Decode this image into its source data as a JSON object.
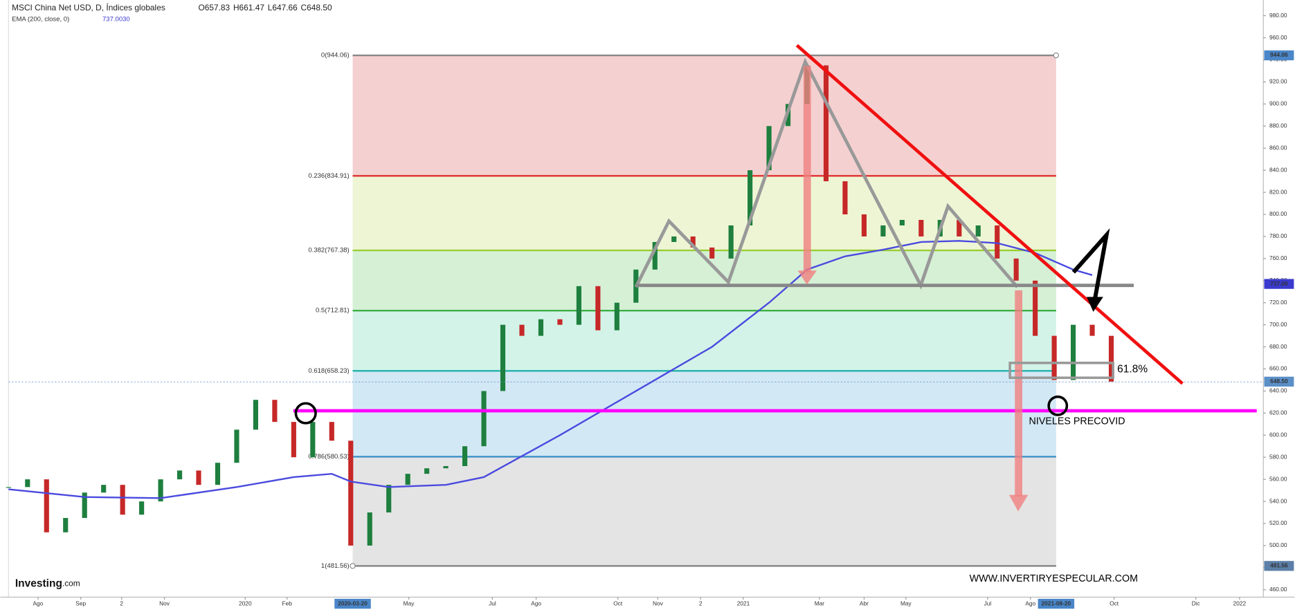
{
  "chart_data": {
    "type": "candlestick",
    "header_suffix": ", D, Índices globales",
    "open": "O657.83",
    "high": "H661.47",
    "low": "L647.66",
    "close": "C648.50",
    "ema_value": "737.0030",
    "xlim": [
      0,
      132
    ],
    "ylim": [
      460,
      980
    ],
    "yticks": [
      {
        "value": 460,
        "label": "460.00"
      },
      {
        "value": 480,
        "label": "480.00"
      },
      {
        "value": 500,
        "label": "500.00"
      },
      {
        "value": 520,
        "label": "520.00"
      },
      {
        "value": 540,
        "label": "540.00"
      },
      {
        "value": 560,
        "label": "560.00"
      },
      {
        "value": 580,
        "label": "580.00"
      },
      {
        "value": 600,
        "label": "600.00"
      },
      {
        "value": 620,
        "label": "620.00"
      },
      {
        "value": 640,
        "label": "640.00"
      },
      {
        "value": 660,
        "label": "660.00"
      },
      {
        "value": 680,
        "label": "680.00"
      },
      {
        "value": 700,
        "label": "700.00"
      },
      {
        "value": 720,
        "label": "720.00"
      },
      {
        "value": 740,
        "label": "740.00"
      },
      {
        "value": 760,
        "label": "760.00"
      },
      {
        "value": 780,
        "label": "780.00"
      },
      {
        "value": 800,
        "label": "800.00"
      },
      {
        "value": 820,
        "label": "820.00"
      },
      {
        "value": 840,
        "label": "840.00"
      },
      {
        "value": 860,
        "label": "860.00"
      },
      {
        "value": 880,
        "label": "880.00"
      },
      {
        "value": 900,
        "label": "900.00"
      },
      {
        "value": 920,
        "label": "920.00"
      },
      {
        "value": 940,
        "label": "940.00"
      },
      {
        "value": 960,
        "label": "960.00"
      },
      {
        "value": 980,
        "label": "980.00"
      }
    ],
    "xticks": [
      {
        "value": 3.1,
        "label": "Ago"
      },
      {
        "value": 7.6,
        "label": "Sep"
      },
      {
        "value": 11.9,
        "label": "2"
      },
      {
        "value": 16.4,
        "label": "Nov"
      },
      {
        "value": 24.9,
        "label": "2020"
      },
      {
        "value": 29.3,
        "label": "Feb"
      },
      {
        "value": 42.1,
        "label": "May"
      },
      {
        "value": 50.9,
        "label": "Jul"
      },
      {
        "value": 55.5,
        "label": "Ago"
      },
      {
        "value": 64.1,
        "label": "Oct"
      },
      {
        "value": 68.3,
        "label": "Nov"
      },
      {
        "value": 72.8,
        "label": "2"
      },
      {
        "value": 77.3,
        "label": "2021"
      },
      {
        "value": 85.3,
        "label": "Mar"
      },
      {
        "value": 90,
        "label": "Abr"
      },
      {
        "value": 94.4,
        "label": "May"
      },
      {
        "value": 103,
        "label": "Jul"
      },
      {
        "value": 107.5,
        "label": "Ago"
      },
      {
        "value": 116.3,
        "label": "Oct"
      },
      {
        "value": 124.9,
        "label": "Dic"
      },
      {
        "value": 129.5,
        "label": "2022"
      }
    ],
    "x_markers": [
      {
        "value": 36.2,
        "label": "2020-03-20"
      },
      {
        "value": 110.2,
        "label": "2021-08-20"
      }
    ],
    "series": [
      {
        "name": "MSCI China Net USD",
        "up_color": "#1e7f3e",
        "down_color": "#c62828",
        "x": [
          0,
          2,
          4,
          6,
          8,
          10,
          12,
          14,
          16,
          18,
          20,
          22,
          24,
          26,
          28,
          30,
          32,
          34,
          36,
          38,
          40,
          42,
          44,
          46,
          48,
          50,
          52,
          54,
          56,
          58,
          60,
          62,
          64,
          66,
          68,
          70,
          72,
          74,
          76,
          78,
          80,
          82,
          84,
          86,
          88,
          90,
          92,
          94,
          96,
          98,
          100,
          102,
          104,
          106,
          108,
          110,
          112,
          114,
          116
        ],
        "values": [
          553,
          560,
          512,
          525,
          548,
          555,
          528,
          540,
          560,
          568,
          555,
          575,
          605,
          632,
          612,
          580,
          612,
          595,
          500,
          530,
          555,
          565,
          570,
          572,
          590,
          640,
          700,
          690,
          705,
          700,
          735,
          695,
          720,
          750,
          775,
          780,
          770,
          760,
          790,
          840,
          880,
          900,
          935,
          830,
          800,
          780,
          790,
          795,
          780,
          795,
          780,
          790,
          760,
          740,
          690,
          650,
          700,
          690,
          648.5
        ]
      },
      {
        "name": "EMA (200, close, 0)",
        "color": "#4a4adf",
        "x": [
          0,
          8,
          16,
          24,
          30,
          34,
          36,
          40,
          46,
          50,
          58,
          66,
          74,
          80,
          84,
          88,
          92,
          96,
          100,
          104,
          108,
          112,
          114
        ],
        "values": [
          551,
          544,
          543,
          553,
          562,
          565,
          558,
          553,
          555,
          562,
          600,
          640,
          680,
          720,
          750,
          762,
          768,
          775,
          776,
          774,
          765,
          750,
          745
        ]
      }
    ],
    "fib_start": 36.2,
    "fib_end": 110.2,
    "fib_levels": [
      {
        "value": 944.06,
        "label": "0(944.06)",
        "color": "#888888"
      },
      {
        "value": 834.91,
        "label": "0.236(834.91)",
        "color": "#e03030"
      },
      {
        "value": 767.38,
        "label": "0.382(767.38)",
        "color": "#9acd32"
      },
      {
        "value": 712.81,
        "label": "0.5(712.81)",
        "color": "#3cb043"
      },
      {
        "value": 658.23,
        "label": "0.618(658.23)",
        "color": "#20b2aa"
      },
      {
        "value": 580.53,
        "label": "0.786(580.53)",
        "color": "#3a8fc8"
      },
      {
        "value": 481.56,
        "label": "1(481.56)",
        "color": "#888888"
      }
    ],
    "fib_fills": [
      "#f5d0d0",
      "#eef5d5",
      "#d5f0d5",
      "#d3f3e8",
      "#d3e8f5",
      "#e4e4e4"
    ],
    "price_tags": [
      {
        "value": 944.06,
        "label": "944.06",
        "color": "#4a86c8"
      },
      {
        "value": 737.0,
        "label": "737.00",
        "color": "#3a3acf"
      },
      {
        "value": 648.5,
        "label": "648.50",
        "color": "#5b8fc7"
      },
      {
        "value": 481.56,
        "label": "481.56",
        "color": "#5b7fa8"
      }
    ],
    "annotations": {
      "fib_pct": "61.8%",
      "precovid": "NIVELES PRECOVID",
      "website": "WWW.INVERTIRYESPECULAR.COM",
      "logo": "Investing",
      "logo_suffix": ".com"
    }
  }
}
